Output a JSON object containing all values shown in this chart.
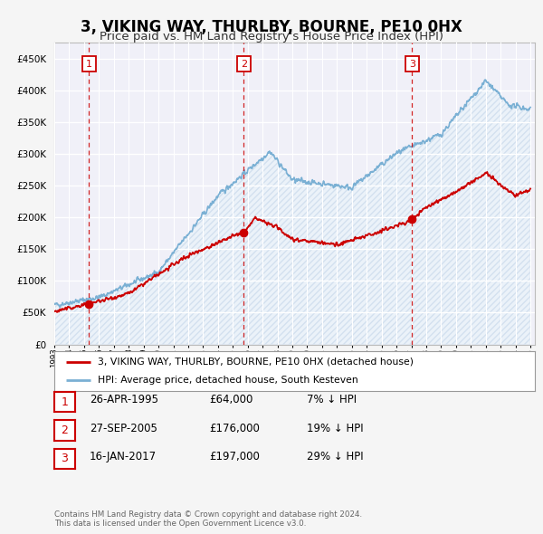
{
  "title": "3, VIKING WAY, THURLBY, BOURNE, PE10 0HX",
  "subtitle": "Price paid vs. HM Land Registry's House Price Index (HPI)",
  "title_fontsize": 12,
  "subtitle_fontsize": 9.5,
  "ylim": [
    0,
    475000
  ],
  "yticks": [
    0,
    50000,
    100000,
    150000,
    200000,
    250000,
    300000,
    350000,
    400000,
    450000
  ],
  "ytick_labels": [
    "£0",
    "£50K",
    "£100K",
    "£150K",
    "£200K",
    "£250K",
    "£300K",
    "£350K",
    "£400K",
    "£450K"
  ],
  "background_color": "#f5f5f5",
  "plot_bg_color": "#f0f0f8",
  "hpi_color": "#7ab0d4",
  "hpi_fill_color": "#dce8f5",
  "price_color": "#cc0000",
  "sale_dates": [
    1995.32,
    2005.74,
    2017.04
  ],
  "sale_prices": [
    64000,
    176000,
    197000
  ],
  "sale_labels": [
    "1",
    "2",
    "3"
  ],
  "legend_label_price": "3, VIKING WAY, THURLBY, BOURNE, PE10 0HX (detached house)",
  "legend_label_hpi": "HPI: Average price, detached house, South Kesteven",
  "table_rows": [
    {
      "num": "1",
      "date": "26-APR-1995",
      "price": "£64,000",
      "hpi": "7% ↓ HPI"
    },
    {
      "num": "2",
      "date": "27-SEP-2005",
      "price": "£176,000",
      "hpi": "19% ↓ HPI"
    },
    {
      "num": "3",
      "date": "16-JAN-2017",
      "price": "£197,000",
      "hpi": "29% ↓ HPI"
    }
  ],
  "footer": "Contains HM Land Registry data © Crown copyright and database right 2024.\nThis data is licensed under the Open Government Licence v3.0."
}
